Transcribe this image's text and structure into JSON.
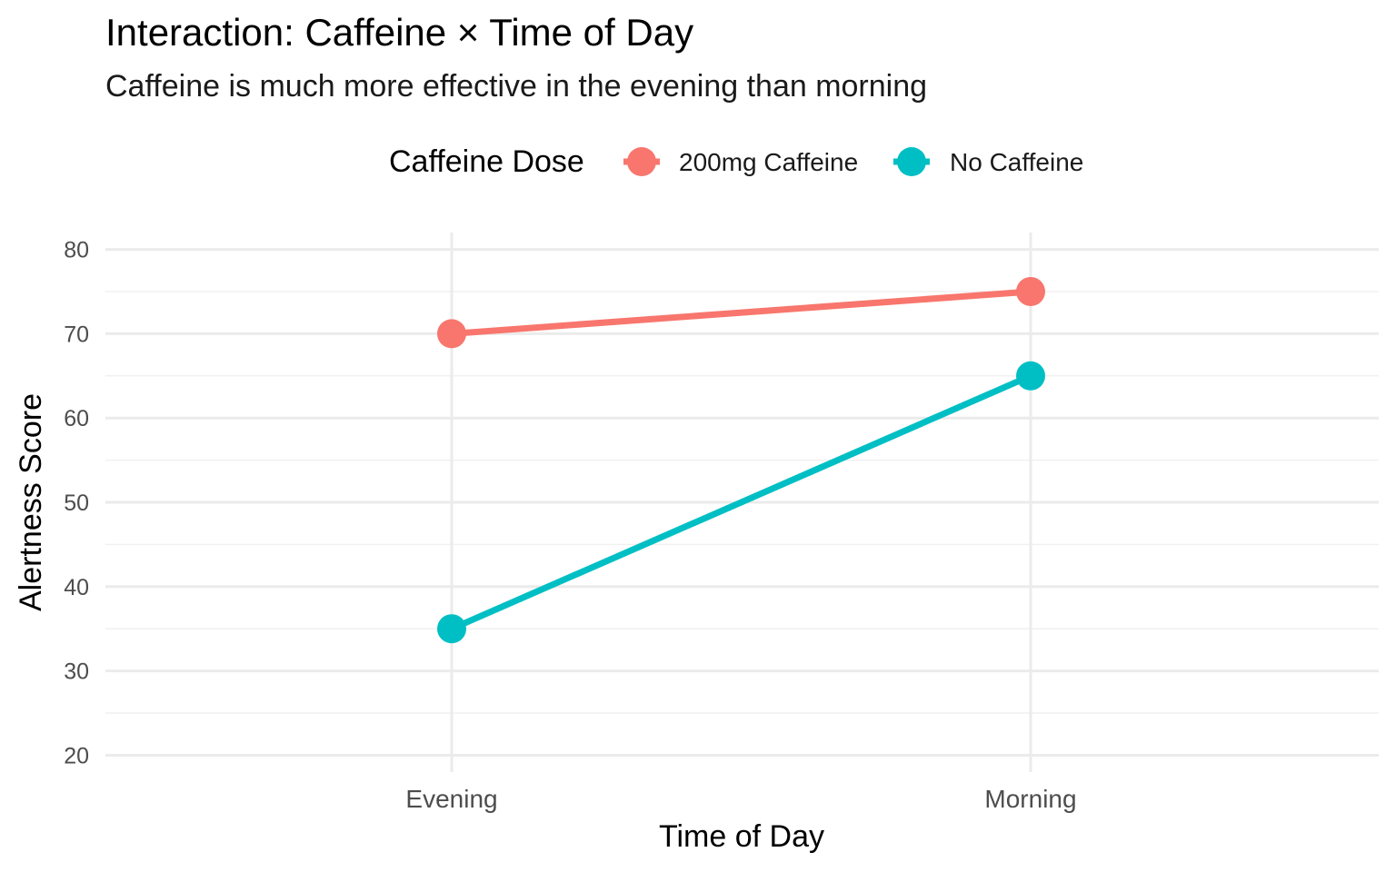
{
  "chart_data": {
    "type": "line",
    "title": "Interaction: Caffeine × Time of Day",
    "subtitle": "Caffeine is much more effective in the evening than morning",
    "xlabel": "Time of Day",
    "ylabel": "Alertness Score",
    "categories": [
      "Evening",
      "Morning"
    ],
    "ylim": [
      18,
      82
    ],
    "yticks": [
      20,
      30,
      40,
      50,
      60,
      70,
      80
    ],
    "grid": true,
    "legend": {
      "title": "Caffeine Dose",
      "placement": "top"
    },
    "series": [
      {
        "name": "200mg Caffeine",
        "color": "#F8766D",
        "values": [
          70,
          75
        ]
      },
      {
        "name": "No Caffeine",
        "color": "#00BFC4",
        "values": [
          35,
          65
        ]
      }
    ]
  }
}
